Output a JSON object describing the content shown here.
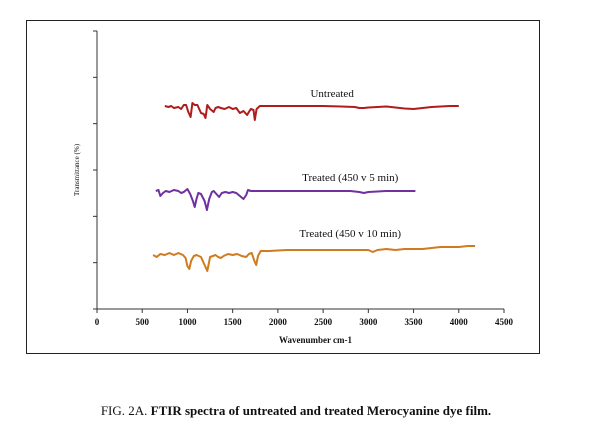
{
  "chart_data": {
    "type": "line",
    "xlabel": "Wavenumber cm-1",
    "ylabel": "Transmittance (%)",
    "xlim": [
      0,
      4500
    ],
    "x_ticks": [
      0,
      500,
      1000,
      1500,
      2000,
      2500,
      3000,
      3500,
      4000,
      4500
    ],
    "grid": false,
    "legend": "none",
    "series": [
      {
        "name": "Untreated",
        "color": "#b01c1c",
        "points": [
          [
            750,
            75
          ],
          [
            790,
            76
          ],
          [
            820,
            75
          ],
          [
            850,
            77
          ],
          [
            900,
            76
          ],
          [
            930,
            78
          ],
          [
            960,
            74
          ],
          [
            985,
            74
          ],
          [
            1010,
            81
          ],
          [
            1035,
            86
          ],
          [
            1055,
            72
          ],
          [
            1080,
            74
          ],
          [
            1110,
            74
          ],
          [
            1150,
            82
          ],
          [
            1180,
            83
          ],
          [
            1200,
            87
          ],
          [
            1220,
            74
          ],
          [
            1250,
            78
          ],
          [
            1290,
            81
          ],
          [
            1310,
            77
          ],
          [
            1340,
            76
          ],
          [
            1370,
            77
          ],
          [
            1410,
            78
          ],
          [
            1460,
            76
          ],
          [
            1500,
            78
          ],
          [
            1540,
            77
          ],
          [
            1580,
            82
          ],
          [
            1620,
            80
          ],
          [
            1660,
            84
          ],
          [
            1680,
            81
          ],
          [
            1700,
            78
          ],
          [
            1730,
            79
          ],
          [
            1745,
            89
          ],
          [
            1765,
            78
          ],
          [
            1800,
            75
          ],
          [
            1900,
            75
          ],
          [
            2100,
            75
          ],
          [
            2300,
            75
          ],
          [
            2500,
            75
          ],
          [
            2700,
            75.5
          ],
          [
            2850,
            76
          ],
          [
            2900,
            77
          ],
          [
            2950,
            77
          ],
          [
            3000,
            76.5
          ],
          [
            3100,
            76
          ],
          [
            3200,
            75.5
          ],
          [
            3300,
            76.5
          ],
          [
            3400,
            77.5
          ],
          [
            3500,
            78
          ],
          [
            3600,
            77
          ],
          [
            3700,
            76
          ],
          [
            3800,
            75.5
          ],
          [
            3900,
            75
          ],
          [
            4000,
            75
          ]
        ]
      },
      {
        "name": "Treated (450 v 5 min)",
        "color": "#7030a0",
        "points": [
          [
            650,
            160
          ],
          [
            680,
            159
          ],
          [
            700,
            165
          ],
          [
            730,
            162
          ],
          [
            760,
            160
          ],
          [
            800,
            161
          ],
          [
            850,
            159
          ],
          [
            900,
            160
          ],
          [
            930,
            162
          ],
          [
            960,
            161
          ],
          [
            1000,
            158
          ],
          [
            1030,
            163
          ],
          [
            1060,
            170
          ],
          [
            1080,
            176
          ],
          [
            1100,
            168
          ],
          [
            1120,
            162
          ],
          [
            1150,
            163
          ],
          [
            1190,
            170
          ],
          [
            1215,
            179
          ],
          [
            1240,
            168
          ],
          [
            1270,
            161
          ],
          [
            1290,
            160
          ],
          [
            1320,
            163
          ],
          [
            1350,
            166
          ],
          [
            1380,
            162
          ],
          [
            1420,
            161
          ],
          [
            1460,
            162
          ],
          [
            1500,
            161
          ],
          [
            1540,
            162
          ],
          [
            1580,
            165
          ],
          [
            1620,
            168
          ],
          [
            1650,
            164
          ],
          [
            1670,
            159
          ],
          [
            1700,
            160
          ],
          [
            1800,
            160
          ],
          [
            2000,
            160
          ],
          [
            2300,
            160
          ],
          [
            2600,
            160
          ],
          [
            2800,
            160
          ],
          [
            2900,
            161
          ],
          [
            2950,
            162
          ],
          [
            3000,
            161
          ],
          [
            3100,
            160.5
          ],
          [
            3200,
            160
          ],
          [
            3300,
            160
          ],
          [
            3400,
            160
          ],
          [
            3520,
            160
          ]
        ]
      },
      {
        "name": "Treated (450 v  10 min)",
        "color": "#d07b1f",
        "points": [
          [
            620,
            224
          ],
          [
            660,
            226
          ],
          [
            700,
            223
          ],
          [
            750,
            224
          ],
          [
            800,
            222
          ],
          [
            850,
            224
          ],
          [
            900,
            222
          ],
          [
            950,
            224
          ],
          [
            980,
            227
          ],
          [
            1000,
            235
          ],
          [
            1020,
            238
          ],
          [
            1040,
            230
          ],
          [
            1070,
            225
          ],
          [
            1100,
            224
          ],
          [
            1150,
            226
          ],
          [
            1180,
            232
          ],
          [
            1220,
            240
          ],
          [
            1250,
            226
          ],
          [
            1280,
            225
          ],
          [
            1310,
            224
          ],
          [
            1340,
            226
          ],
          [
            1370,
            227
          ],
          [
            1400,
            225
          ],
          [
            1450,
            223
          ],
          [
            1500,
            224
          ],
          [
            1550,
            223
          ],
          [
            1600,
            225
          ],
          [
            1650,
            226
          ],
          [
            1680,
            223
          ],
          [
            1710,
            222
          ],
          [
            1740,
            230
          ],
          [
            1760,
            234
          ],
          [
            1780,
            225
          ],
          [
            1810,
            220
          ],
          [
            1900,
            220
          ],
          [
            2100,
            219
          ],
          [
            2300,
            219
          ],
          [
            2500,
            219
          ],
          [
            2700,
            219
          ],
          [
            2900,
            219
          ],
          [
            3000,
            219
          ],
          [
            3050,
            221
          ],
          [
            3100,
            219
          ],
          [
            3200,
            218
          ],
          [
            3300,
            219
          ],
          [
            3400,
            218
          ],
          [
            3500,
            218
          ],
          [
            3600,
            218
          ],
          [
            3700,
            217
          ],
          [
            3800,
            216
          ],
          [
            3900,
            216
          ],
          [
            4000,
            216
          ],
          [
            4100,
            215
          ],
          [
            4180,
            215
          ]
        ]
      }
    ]
  },
  "caption": {
    "label": "FIG. 2A.",
    "text": "FTIR spectra of untreated and treated Merocyanine dye film."
  }
}
